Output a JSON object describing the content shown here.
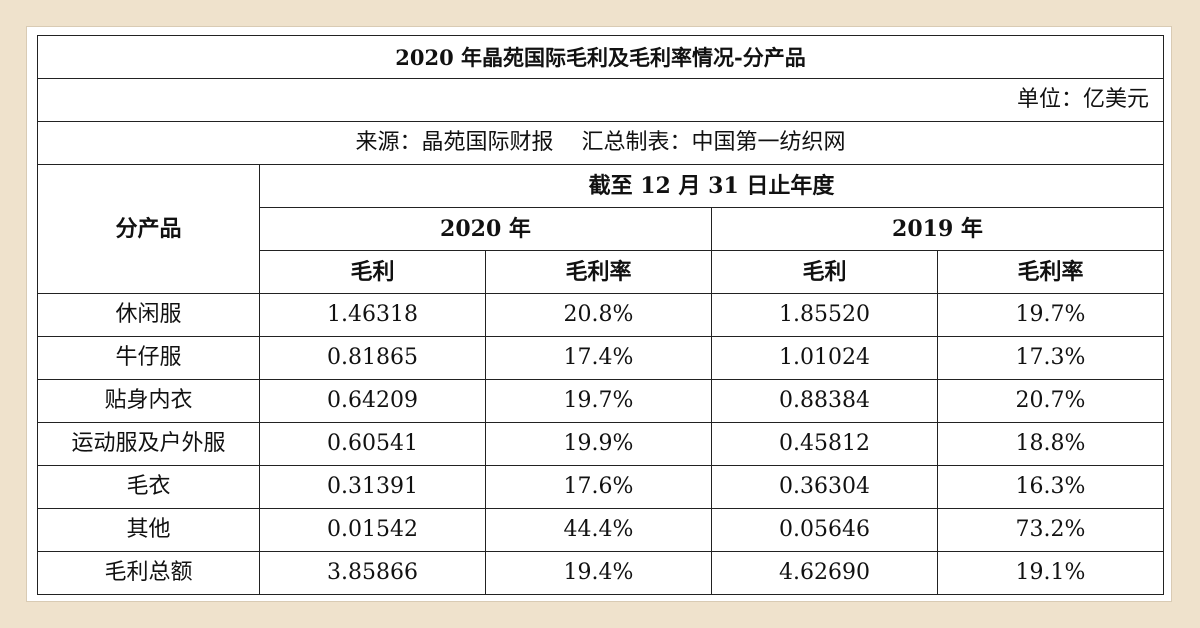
{
  "title": "2020 年晶苑国际毛利及毛利率情况-分产品",
  "unit": "单位：亿美元",
  "source": "来源：晶苑国际财报    汇总制表：中国第一纺织网",
  "header": {
    "product": "分产品",
    "period": "截至 12 月 31 日止年度",
    "year_2020": "2020 年",
    "year_2019": "2019 年",
    "gross_profit": "毛利",
    "gross_margin": "毛利率"
  },
  "rows": [
    {
      "product": "休闲服",
      "gp2020": "1.46318",
      "gm2020": "20.8%",
      "gp2019": "1.85520",
      "gm2019": "19.7%"
    },
    {
      "product": "牛仔服",
      "gp2020": "0.81865",
      "gm2020": "17.4%",
      "gp2019": "1.01024",
      "gm2019": "17.3%"
    },
    {
      "product": "贴身内衣",
      "gp2020": "0.64209",
      "gm2020": "19.7%",
      "gp2019": "0.88384",
      "gm2019": "20.7%"
    },
    {
      "product": "运动服及户外服",
      "gp2020": "0.60541",
      "gm2020": "19.9%",
      "gp2019": "0.45812",
      "gm2019": "18.8%"
    },
    {
      "product": "毛衣",
      "gp2020": "0.31391",
      "gm2020": "17.6%",
      "gp2019": "0.36304",
      "gm2019": "16.3%"
    },
    {
      "product": "其他",
      "gp2020": "0.01542",
      "gm2020": "44.4%",
      "gp2019": "0.05646",
      "gm2019": "73.2%"
    },
    {
      "product": "毛利总额",
      "gp2020": "3.85866",
      "gm2020": "19.4%",
      "gp2019": "4.62690",
      "gm2019": "19.1%"
    }
  ]
}
